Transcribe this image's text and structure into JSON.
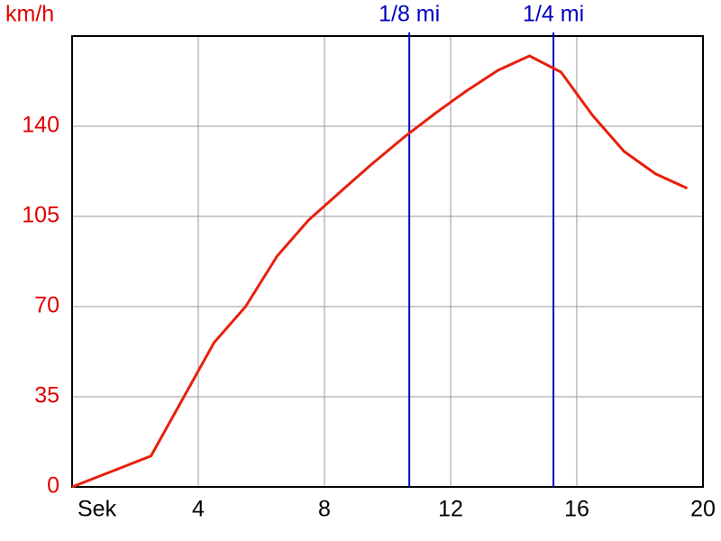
{
  "chart_data": {
    "type": "line",
    "y_label": "km/h",
    "x_label": "Sek",
    "x": [
      0,
      2.5,
      4.5,
      5.5,
      6.5,
      7.5,
      8.5,
      9.5,
      10.5,
      11.5,
      12.5,
      13.5,
      14.5,
      15.5,
      16.5,
      17.5,
      18.5,
      19.5
    ],
    "values": [
      0,
      12,
      56,
      70,
      89.6,
      103.6,
      114.5,
      125.3,
      135.5,
      144.9,
      153.7,
      161.7,
      167.3,
      161,
      144.2,
      130.2,
      121.5,
      115.9
    ],
    "color": "#e8200c",
    "xlim": [
      0,
      20
    ],
    "xticks": [
      4,
      8,
      12,
      16,
      20
    ],
    "ylim": [
      0,
      175
    ],
    "yticks": [
      0,
      35,
      70,
      105,
      140
    ],
    "grid": true,
    "grid_color": "#999999",
    "y_label_color": "#e00000",
    "x_label_color": "#000000",
    "markers": [
      {
        "label": "1/8 mi",
        "x": 10.69,
        "color": "#0000c0"
      },
      {
        "label": "1/4 mi",
        "x": 15.26,
        "color": "#0000c0"
      }
    ]
  }
}
